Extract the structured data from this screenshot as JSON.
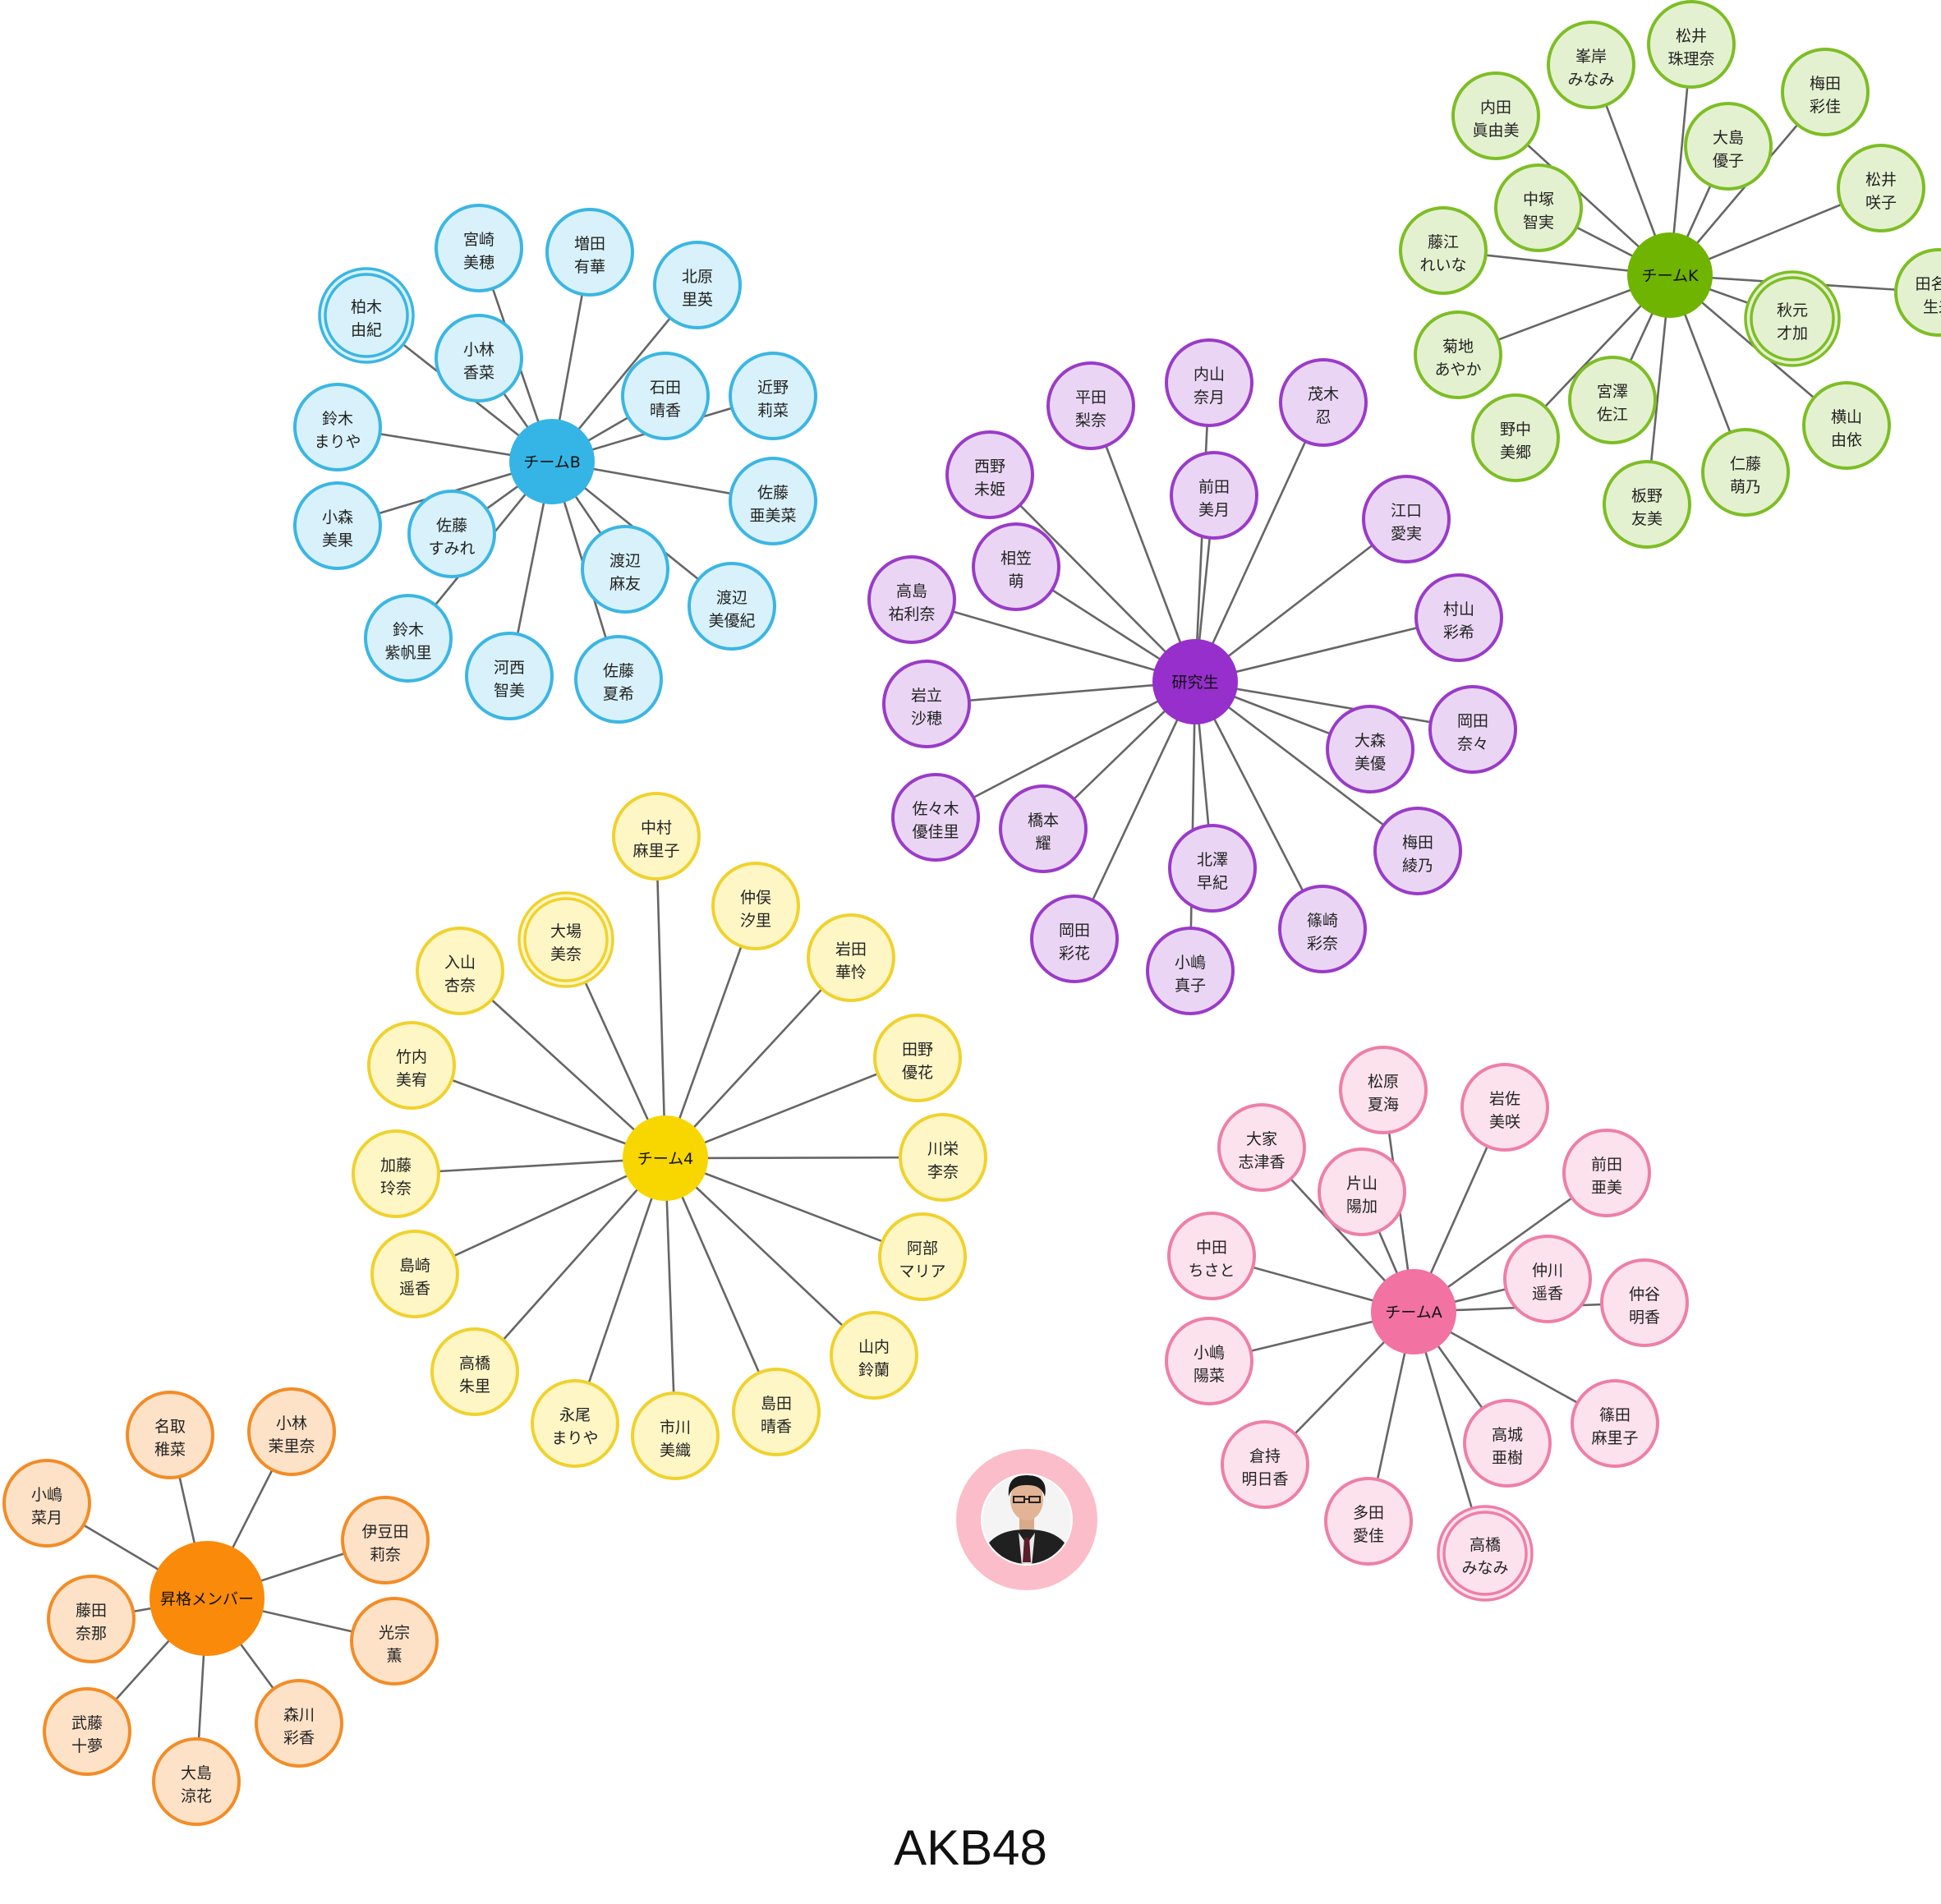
{
  "title": "AKB48",
  "photo": {
    "label": "producer-portrait"
  },
  "teams": [
    {
      "name": "チームB",
      "colors": {
        "hub": "#34B5E5",
        "stroke": "#3BB6E3",
        "fill": "#D8F1FA",
        "line": "#666666"
      },
      "members": [
        {
          "line1": "宮崎",
          "line2": "美穂"
        },
        {
          "line1": "増田",
          "line2": "有華"
        },
        {
          "line1": "北原",
          "line2": "里英"
        },
        {
          "line1": "柏木",
          "line2": "由紀",
          "double": true
        },
        {
          "line1": "小林",
          "line2": "香菜"
        },
        {
          "line1": "石田",
          "line2": "晴香"
        },
        {
          "line1": "近野",
          "line2": "莉菜"
        },
        {
          "line1": "鈴木",
          "line2": "まりや"
        },
        {
          "line1": "佐藤",
          "line2": "亜美菜"
        },
        {
          "line1": "小森",
          "line2": "美果"
        },
        {
          "line1": "佐藤",
          "line2": "すみれ"
        },
        {
          "line1": "渡辺",
          "line2": "麻友"
        },
        {
          "line1": "渡辺",
          "line2": "美優紀"
        },
        {
          "line1": "鈴木",
          "line2": "紫帆里"
        },
        {
          "line1": "河西",
          "line2": "智美"
        },
        {
          "line1": "佐藤",
          "line2": "夏希"
        }
      ]
    },
    {
      "name": "チームK",
      "colors": {
        "hub": "#6FB400",
        "stroke": "#7DBE25",
        "fill": "#E4F1D0",
        "line": "#666666"
      },
      "members": [
        {
          "line1": "峯岸",
          "line2": "みなみ"
        },
        {
          "line1": "松井",
          "line2": "珠理奈"
        },
        {
          "line1": "内田",
          "line2": "眞由美"
        },
        {
          "line1": "梅田",
          "line2": "彩佳"
        },
        {
          "line1": "大島",
          "line2": "優子"
        },
        {
          "line1": "中塚",
          "line2": "智実"
        },
        {
          "line1": "松井",
          "line2": "咲子"
        },
        {
          "line1": "藤江",
          "line2": "れいな"
        },
        {
          "line1": "田名部",
          "line2": "生来"
        },
        {
          "line1": "秋元",
          "line2": "才加",
          "double": true
        },
        {
          "line1": "菊地",
          "line2": "あやか"
        },
        {
          "line1": "宮澤",
          "line2": "佐江"
        },
        {
          "line1": "横山",
          "line2": "由依"
        },
        {
          "line1": "野中",
          "line2": "美郷"
        },
        {
          "line1": "仁藤",
          "line2": "萌乃"
        },
        {
          "line1": "板野",
          "line2": "友美"
        }
      ]
    },
    {
      "name": "研究生",
      "colors": {
        "hub": "#962FCC",
        "stroke": "#9A3BC9",
        "fill": "#EAD6F4",
        "line": "#666666"
      },
      "members": [
        {
          "line1": "内山",
          "line2": "奈月"
        },
        {
          "line1": "平田",
          "line2": "梨奈"
        },
        {
          "line1": "茂木",
          "line2": "忍"
        },
        {
          "line1": "西野",
          "line2": "未姫"
        },
        {
          "line1": "前田",
          "line2": "美月"
        },
        {
          "line1": "江口",
          "line2": "愛実"
        },
        {
          "line1": "相笠",
          "line2": "萌"
        },
        {
          "line1": "高島",
          "line2": "祐利奈"
        },
        {
          "line1": "村山",
          "line2": "彩希"
        },
        {
          "line1": "岩立",
          "line2": "沙穂"
        },
        {
          "line1": "岡田",
          "line2": "奈々"
        },
        {
          "line1": "大森",
          "line2": "美優"
        },
        {
          "line1": "佐々木",
          "line2": "優佳里"
        },
        {
          "line1": "橋本",
          "line2": "耀"
        },
        {
          "line1": "梅田",
          "line2": "綾乃"
        },
        {
          "line1": "北澤",
          "line2": "早紀"
        },
        {
          "line1": "岡田",
          "line2": "彩花"
        },
        {
          "line1": "篠崎",
          "line2": "彩奈"
        },
        {
          "line1": "小嶋",
          "line2": "真子"
        }
      ]
    },
    {
      "name": "チーム4",
      "colors": {
        "hub": "#F8D600",
        "stroke": "#F0D22E",
        "fill": "#FFF6C6",
        "line": "#666666"
      },
      "members": [
        {
          "line1": "中村",
          "line2": "麻里子"
        },
        {
          "line1": "仲俣",
          "line2": "汐里"
        },
        {
          "line1": "大場",
          "line2": "美奈",
          "double": true
        },
        {
          "line1": "入山",
          "line2": "杏奈"
        },
        {
          "line1": "岩田",
          "line2": "華怜"
        },
        {
          "line1": "竹内",
          "line2": "美宥"
        },
        {
          "line1": "田野",
          "line2": "優花"
        },
        {
          "line1": "加藤",
          "line2": "玲奈"
        },
        {
          "line1": "川栄",
          "line2": "李奈"
        },
        {
          "line1": "島崎",
          "line2": "遥香"
        },
        {
          "line1": "阿部",
          "line2": "マリア"
        },
        {
          "line1": "山内",
          "line2": "鈴蘭"
        },
        {
          "line1": "高橋",
          "line2": "朱里"
        },
        {
          "line1": "永尾",
          "line2": "まりや"
        },
        {
          "line1": "島田",
          "line2": "晴香"
        },
        {
          "line1": "市川",
          "line2": "美織"
        }
      ]
    },
    {
      "name": "チームA",
      "colors": {
        "hub": "#F272A2",
        "stroke": "#EE7FA6",
        "fill": "#FCE2EC",
        "line": "#666666"
      },
      "members": [
        {
          "line1": "松原",
          "line2": "夏海"
        },
        {
          "line1": "岩佐",
          "line2": "美咲"
        },
        {
          "line1": "大家",
          "line2": "志津香"
        },
        {
          "line1": "片山",
          "line2": "陽加"
        },
        {
          "line1": "前田",
          "line2": "亜美"
        },
        {
          "line1": "中田",
          "line2": "ちさと"
        },
        {
          "line1": "仲川",
          "line2": "遥香"
        },
        {
          "line1": "仲谷",
          "line2": "明香"
        },
        {
          "line1": "小嶋",
          "line2": "陽菜"
        },
        {
          "line1": "篠田",
          "line2": "麻里子"
        },
        {
          "line1": "高城",
          "line2": "亜樹"
        },
        {
          "line1": "倉持",
          "line2": "明日香"
        },
        {
          "line1": "多田",
          "line2": "愛佳"
        },
        {
          "line1": "高橋",
          "line2": "みなみ",
          "double": true
        }
      ]
    },
    {
      "name": "昇格メンバー",
      "colors": {
        "hub": "#FA8A0A",
        "stroke": "#F38C26",
        "fill": "#FEE2C8",
        "line": "#666666"
      },
      "members": [
        {
          "line1": "名取",
          "line2": "稚菜"
        },
        {
          "line1": "小林",
          "line2": "茉里奈"
        },
        {
          "line1": "小嶋",
          "line2": "菜月"
        },
        {
          "line1": "伊豆田",
          "line2": "莉奈"
        },
        {
          "line1": "藤田",
          "line2": "奈那"
        },
        {
          "line1": "光宗",
          "line2": "薫"
        },
        {
          "line1": "武藤",
          "line2": "十夢"
        },
        {
          "line1": "森川",
          "line2": "彩香"
        },
        {
          "line1": "大島",
          "line2": "涼花"
        }
      ]
    }
  ]
}
